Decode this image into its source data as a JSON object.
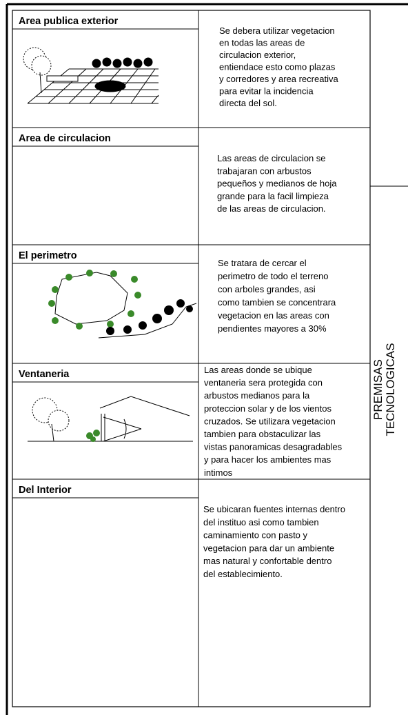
{
  "rows": [
    {
      "title": "Area publica exterior",
      "lines": [
        "Se debera utilizar vegetacion",
        "en todas las areas de",
        "circulacion exterior,",
        "entiendace esto como plazas",
        "y corredores y area recreativa",
        "para evitar la incidencia",
        "directa del sol."
      ]
    },
    {
      "title": "Area de circulacion",
      "lines": [
        "Las areas de circulacion se",
        "trabajaran con arbustos",
        "pequeños y medianos de hoja",
        "grande para la facil limpieza",
        "de las areas de circulacion."
      ]
    },
    {
      "title": "El perimetro",
      "lines": [
        "Se tratara de cercar el",
        "perimetro de todo el terreno",
        "con arboles grandes, asi",
        "como tambien se concentrara",
        "vegetacion en las areas con",
        "pendientes mayores a 30%"
      ]
    },
    {
      "title": "Ventaneria",
      "lines": [
        "Las areas donde se ubique",
        "ventaneria sera protegida con",
        "arbustos medianos para la",
        "proteccion solar y de los vientos",
        "cruzados.  Se utilizara vegetacion",
        "tambien para obstaculizar las",
        "vistas panoramicas desagradables",
        "y para hacer los ambientes mas",
        "intimos"
      ]
    },
    {
      "title": "Del Interior",
      "lines": [
        "Se ubicaran fuentes internas dentro",
        "del instituo asi como tambien",
        "caminamiento con pasto y",
        "vegetacion para dar un ambiente",
        "mas natural y confortable dentro",
        "del establecimiento."
      ]
    }
  ],
  "side_label": [
    "PREMISAS",
    "TECNOLOGICAS"
  ]
}
